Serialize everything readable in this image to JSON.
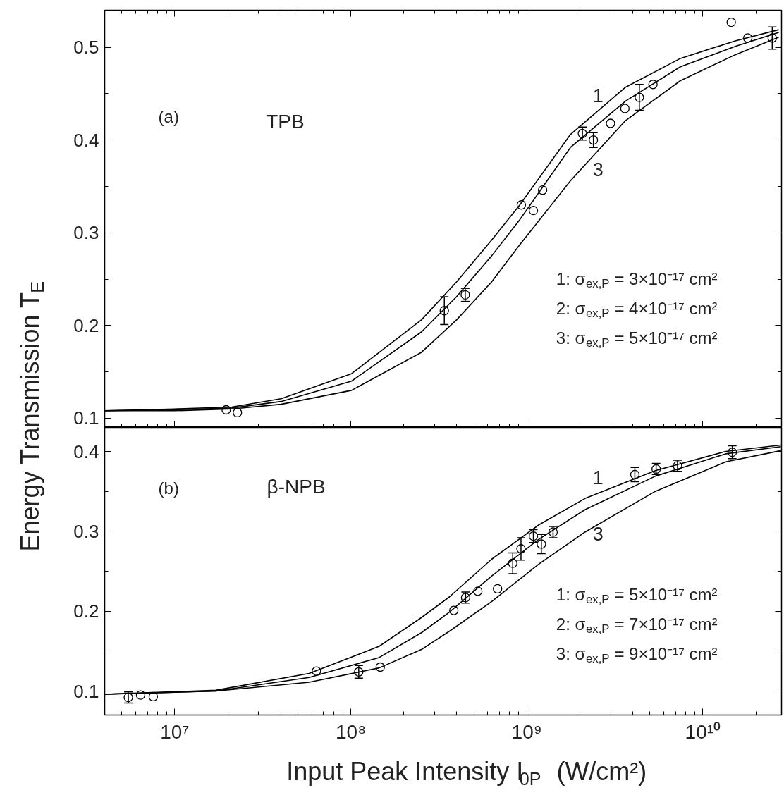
{
  "chart_data": [
    {
      "type": "line",
      "ylabel": "Energy Transmission  T$_{E}$",
      "log": "x",
      "tick_labels": "y",
      "xlim": [
        4000000.0,
        28000000000.0
      ],
      "ylim": [
        0.09,
        0.54
      ],
      "xticks": [
        {
          "value": 10000000.0,
          "label": null
        },
        {
          "value": 100000000.0,
          "label": null
        },
        {
          "value": 1000000000.0,
          "label": null
        },
        {
          "value": 10000000000.0,
          "label": null
        }
      ],
      "yticks": [
        0.1,
        0.2,
        0.3,
        0.4,
        0.5
      ],
      "annotations": [
        "(a)",
        "TPB",
        "1",
        "3",
        "1: σ$_{ex,P}$ = 3×10⁻¹⁷ cm²",
        "2: σ$_{ex,P}$ = 4×10⁻¹⁷ cm²",
        "3: σ$_{ex,P}$ = 5×10⁻¹⁷ cm²"
      ],
      "series": [
        {
          "color": "#000000",
          "x": [
            4000000.0,
            10000000.0,
            21100000.0,
            40200000.0,
            101000000.0,
            252000000.0,
            399000000.0,
            631000000.0,
            912000000.0,
            1770000000.0,
            3640000000.0,
            7460000000.0,
            15300000000.0,
            27000000000.0
          ],
          "values": [
            0.108,
            0.11,
            0.112,
            0.121,
            0.148,
            0.206,
            0.247,
            0.292,
            0.33,
            0.406,
            0.457,
            0.488,
            0.507,
            0.519
          ]
        },
        {
          "color": "#000000",
          "x": [
            4000000.0,
            10000000.0,
            21100000.0,
            40200000.0,
            101000000.0,
            252000000.0,
            399000000.0,
            631000000.0,
            912000000.0,
            1770000000.0,
            3640000000.0,
            7460000000.0,
            15300000000.0,
            27000000000.0
          ],
          "values": [
            0.108,
            0.109,
            0.111,
            0.118,
            0.14,
            0.193,
            0.231,
            0.275,
            0.314,
            0.392,
            0.442,
            0.479,
            0.501,
            0.516
          ]
        },
        {
          "color": "#000000",
          "x": [
            4000000.0,
            10000000.0,
            21100000.0,
            40200000.0,
            101000000.0,
            252000000.0,
            399000000.0,
            631000000.0,
            912000000.0,
            1770000000.0,
            3640000000.0,
            7460000000.0,
            15300000000.0,
            27000000000.0
          ],
          "values": [
            0.108,
            0.108,
            0.11,
            0.115,
            0.13,
            0.171,
            0.206,
            0.247,
            0.287,
            0.356,
            0.421,
            0.464,
            0.492,
            0.511
          ]
        },
        {
          "type": "scatter",
          "marker": "circle",
          "color": "#000000",
          "x": [
            19600000.0,
            22700000.0,
            340000000.0,
            447000000.0,
            931000000.0,
            1090000000.0,
            1230000000.0,
            2070000000.0,
            2390000000.0,
            2990000000.0,
            3610000000.0,
            4360000000.0,
            5210000000.0,
            14500000000.0,
            18000000000.0,
            24800000000.0
          ],
          "values": [
            0.109,
            0.106,
            0.216,
            0.233,
            0.33,
            0.324,
            0.346,
            0.407,
            0.4,
            0.418,
            0.434,
            0.446,
            0.46,
            0.527,
            0.51,
            0.51
          ],
          "errors": [
            null,
            null,
            0.015,
            0.007,
            null,
            null,
            null,
            0.007,
            0.008,
            null,
            null,
            0.014,
            null,
            null,
            null,
            0.012
          ]
        }
      ]
    },
    {
      "type": "line",
      "xlabel": "Input Peak Intensity  I$_{0P}$  (W/cm²)",
      "log": "x",
      "xlim": [
        4000000.0,
        28000000000.0
      ],
      "ylim": [
        0.07,
        0.43
      ],
      "xticks": [
        {
          "value": 10000000.0,
          "label": "10⁷"
        },
        {
          "value": 100000000.0,
          "label": "10⁸"
        },
        {
          "value": 1000000000.0,
          "label": "10⁹"
        },
        {
          "value": 10000000000.0,
          "label": "10¹⁰"
        }
      ],
      "yticks": [
        0.1,
        0.2,
        0.3,
        0.4
      ],
      "annotations": [
        "(b)",
        "β-NPB",
        "1",
        "3",
        "1: σ$_{ex,P}$ = 5×10⁻¹⁷ cm²",
        "2: σ$_{ex,P}$ = 7×10⁻¹⁷ cm²",
        "3: σ$_{ex,P}$ = 9×10⁻¹⁷ cm²"
      ],
      "series": [
        {
          "color": "#000000",
          "x": [
            4000000.0,
            17100000.0,
            58000000.0,
            145000000.0,
            252000000.0,
            364000000.0,
            631000000.0,
            1170000000.0,
            2140000000.0,
            5370000000.0,
            13500000000.0,
            27800000000.0
          ],
          "values": [
            0.096,
            0.101,
            0.122,
            0.156,
            0.192,
            0.218,
            0.265,
            0.308,
            0.341,
            0.376,
            0.4,
            0.408
          ]
        },
        {
          "color": "#000000",
          "x": [
            4000000.0,
            17100000.0,
            58000000.0,
            145000000.0,
            252000000.0,
            364000000.0,
            631000000.0,
            1170000000.0,
            2140000000.0,
            5370000000.0,
            13500000000.0,
            27800000000.0
          ],
          "values": [
            0.096,
            0.1,
            0.117,
            0.142,
            0.173,
            0.199,
            0.244,
            0.29,
            0.327,
            0.369,
            0.397,
            0.406
          ]
        },
        {
          "color": "#000000",
          "x": [
            4000000.0,
            17100000.0,
            58000000.0,
            145000000.0,
            252000000.0,
            364000000.0,
            631000000.0,
            1170000000.0,
            2140000000.0,
            5370000000.0,
            13500000000.0,
            27800000000.0
          ],
          "values": [
            0.096,
            0.1,
            0.111,
            0.129,
            0.152,
            0.175,
            0.212,
            0.259,
            0.299,
            0.35,
            0.387,
            0.401
          ]
        },
        {
          "type": "scatter",
          "marker": "circle",
          "color": "#000000",
          "x": [
            5450000.0,
            6400000.0,
            7550000.0,
            63800000.0,
            111000000.0,
            147000000.0,
            385000000.0,
            449000000.0,
            527000000.0,
            682000000.0,
            832000000.0,
            927000000.0,
            1090000000.0,
            1210000000.0,
            1410000000.0,
            4110000000.0,
            5430000000.0,
            7180000000.0,
            14700000000.0
          ],
          "values": [
            0.092,
            0.095,
            0.093,
            0.125,
            0.124,
            0.13,
            0.201,
            0.217,
            0.225,
            0.228,
            0.26,
            0.278,
            0.294,
            0.284,
            0.299,
            0.371,
            0.378,
            0.382,
            0.399
          ],
          "errors": [
            0.007,
            null,
            null,
            null,
            0.008,
            null,
            null,
            0.007,
            null,
            null,
            0.013,
            0.014,
            0.008,
            0.012,
            0.007,
            0.009,
            0.007,
            0.007,
            0.008
          ]
        }
      ]
    }
  ]
}
